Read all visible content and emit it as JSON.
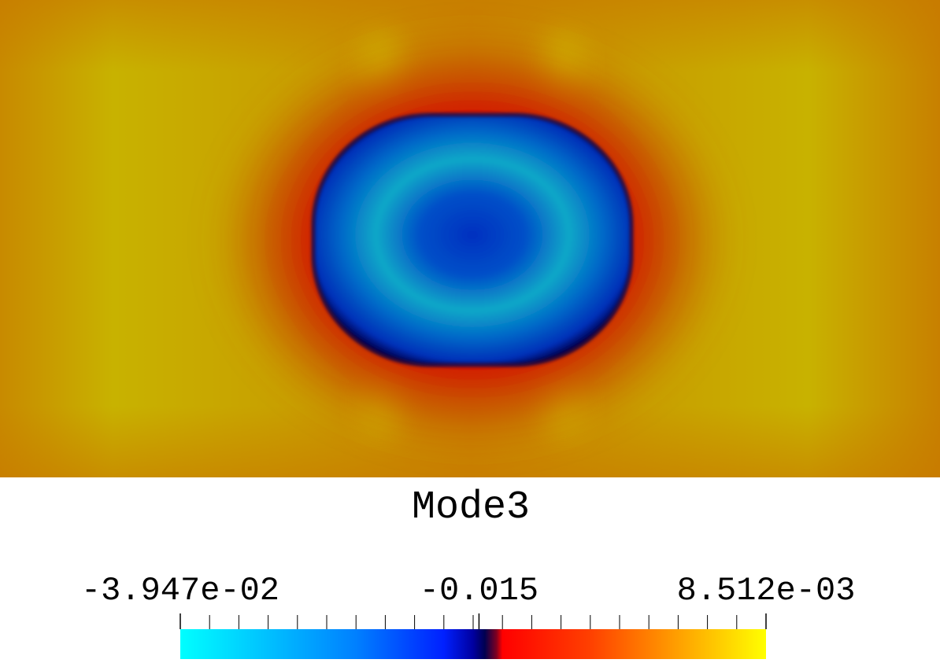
{
  "chart_data": {
    "type": "field",
    "title": "Mode3",
    "clim": [
      -0.03947,
      0.008512
    ],
    "cticks": [
      {
        "value": -0.03947,
        "label": "-3.947e-02"
      },
      -0.015,
      {
        "value": 0.008512,
        "label": "8.512e-03"
      }
    ]
  }
}
